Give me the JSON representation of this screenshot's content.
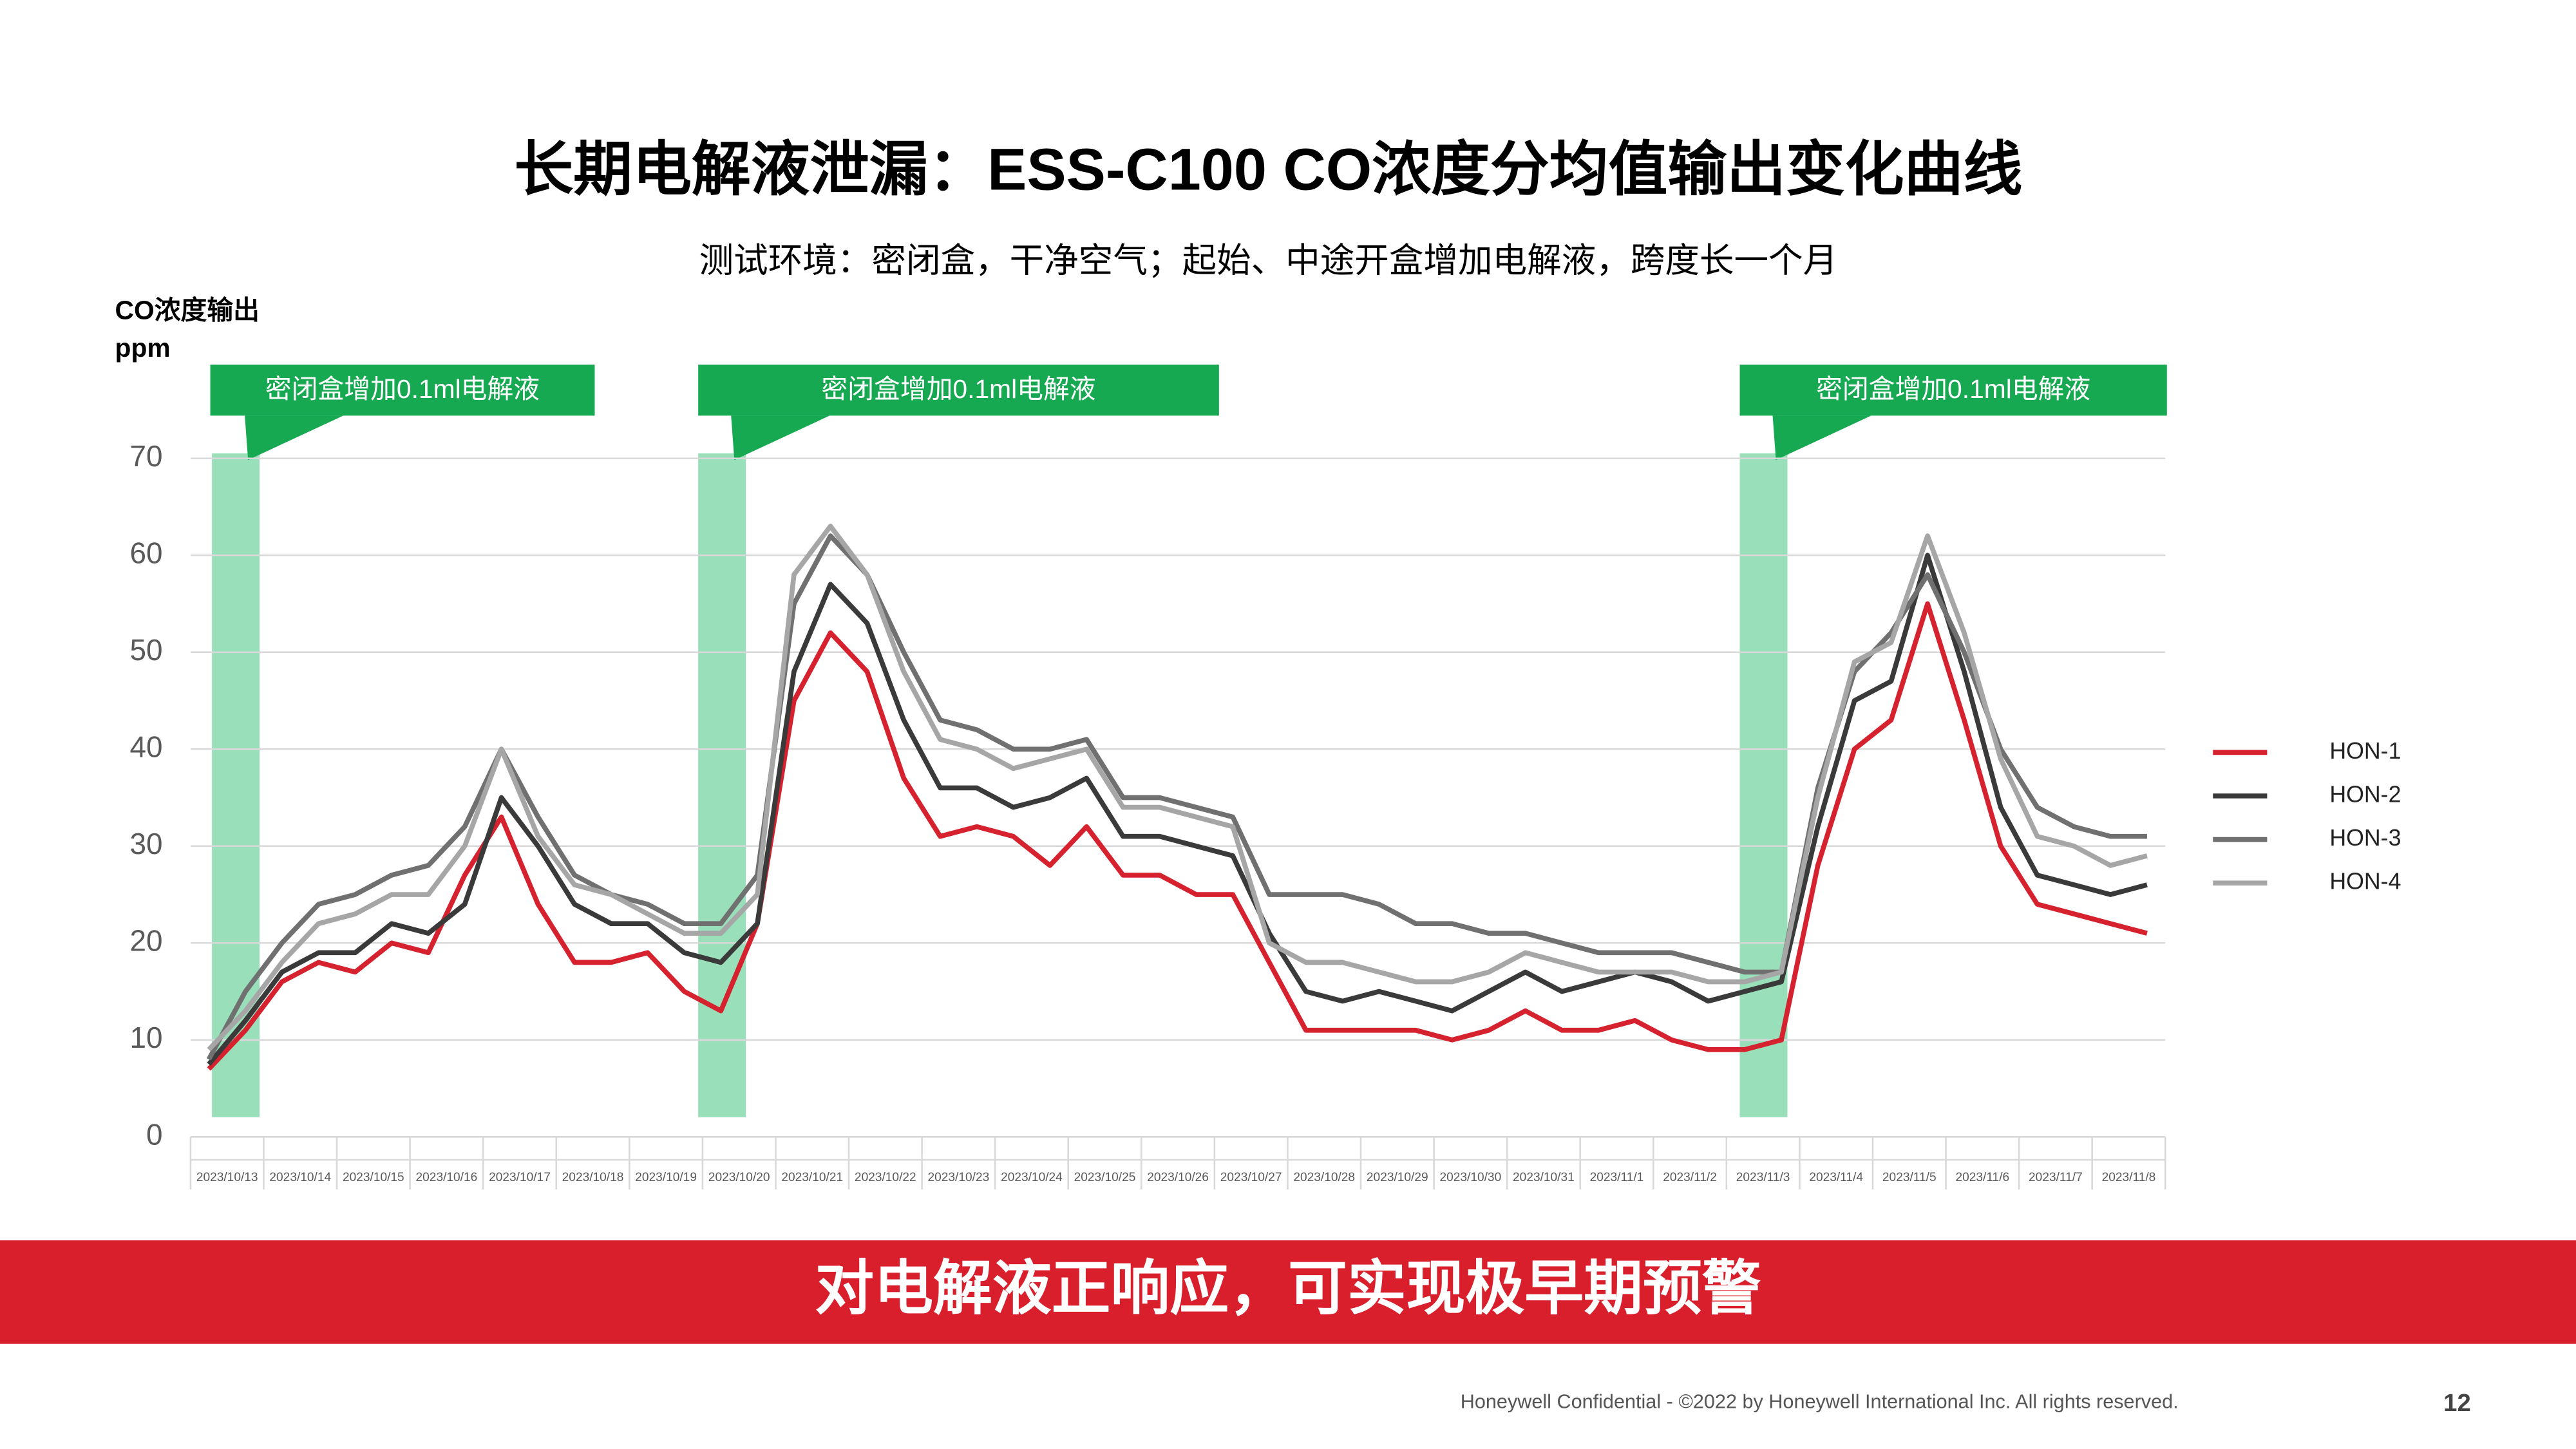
{
  "title": "长期电解液泄漏：ESS-C100 CO浓度分均值输出变化曲线",
  "subtitle": "测试环境：密闭盒，干净空气；起始、中途开盒增加电解液，跨度长一个月",
  "banner": "对电解液正响应，可实现极早期预警",
  "footer": "Honeywell Confidential - ©2022 by Honeywell International Inc. All rights reserved.",
  "page_number": "12",
  "chart_data": {
    "type": "line",
    "y_label": [
      "CO浓度输出",
      "ppm"
    ],
    "annotations": [
      "密闭盒增加0.1ml电解液",
      "密闭盒增加0.1ml电解液",
      "密闭盒增加0.1ml电解液"
    ],
    "categories": [
      "2023/10/13",
      null,
      "2023/10/14",
      null,
      "2023/10/15",
      null,
      "2023/10/16",
      null,
      "2023/10/17",
      null,
      "2023/10/18",
      null,
      "2023/10/19",
      null,
      "2023/10/20",
      null,
      "2023/10/21",
      null,
      "2023/10/22",
      null,
      "2023/10/23",
      null,
      "2023/10/24",
      null,
      "2023/10/25",
      null,
      "2023/10/26",
      null,
      "2023/10/27",
      null,
      "2023/10/28",
      null,
      "2023/10/29",
      null,
      "2023/10/30",
      null,
      "2023/10/31",
      null,
      "2023/11/1",
      null,
      "2023/11/2",
      null,
      "2023/11/3",
      null,
      "2023/11/4",
      null,
      "2023/11/5",
      null,
      "2023/11/6",
      null,
      "2023/11/7",
      null,
      "2023/11/8",
      null
    ],
    "series": [
      {
        "name": "HON-1",
        "color": "#d6212f",
        "values": [
          7,
          11,
          16,
          18,
          17,
          20,
          19,
          27,
          33,
          24,
          18,
          18,
          19,
          15,
          13,
          22,
          45,
          52,
          48,
          37,
          31,
          32,
          31,
          28,
          32,
          27,
          27,
          25,
          25,
          18,
          11,
          11,
          11,
          11,
          10,
          11,
          13,
          11,
          11,
          12,
          10,
          9,
          9,
          10,
          28,
          40,
          43,
          55,
          43,
          30,
          24,
          23,
          22,
          21
        ]
      },
      {
        "name": "HON-2",
        "color": "#3a3a3a",
        "values": [
          7.5,
          12,
          17,
          19,
          19,
          22,
          21,
          24,
          35,
          30,
          24,
          22,
          22,
          19,
          18,
          22,
          48,
          57,
          53,
          43,
          36,
          36,
          34,
          35,
          37,
          31,
          31,
          30,
          29,
          21,
          15,
          14,
          15,
          14,
          13,
          15,
          17,
          15,
          16,
          17,
          16,
          14,
          15,
          16,
          32,
          45,
          47,
          60,
          48,
          34,
          27,
          26,
          25,
          26
        ]
      },
      {
        "name": "HON-3",
        "color": "#707070",
        "values": [
          8,
          15,
          20,
          24,
          25,
          27,
          28,
          32,
          40,
          33,
          27,
          25,
          24,
          22,
          22,
          27,
          55,
          62,
          58,
          50,
          43,
          42,
          40,
          40,
          41,
          35,
          35,
          34,
          33,
          25,
          25,
          25,
          24,
          22,
          22,
          21,
          21,
          20,
          19,
          19,
          19,
          18,
          17,
          17,
          36,
          48,
          52,
          58,
          50,
          40,
          34,
          32,
          31,
          31
        ]
      },
      {
        "name": "HON-4",
        "color": "#a6a6a6",
        "values": [
          9,
          13,
          18,
          22,
          23,
          25,
          25,
          30,
          40,
          31,
          26,
          25,
          23,
          21,
          21,
          25,
          58,
          63,
          58,
          48,
          41,
          40,
          38,
          39,
          40,
          34,
          34,
          33,
          32,
          20,
          18,
          18,
          17,
          16,
          16,
          17,
          19,
          18,
          17,
          17,
          17,
          16,
          16,
          17,
          35,
          49,
          51,
          62,
          52,
          39,
          31,
          30,
          28,
          29
        ]
      }
    ],
    "ylim": [
      0,
      70
    ],
    "yticks": [
      0,
      10,
      20,
      30,
      40,
      50,
      60,
      70
    ],
    "grid": true,
    "legend": "right"
  }
}
